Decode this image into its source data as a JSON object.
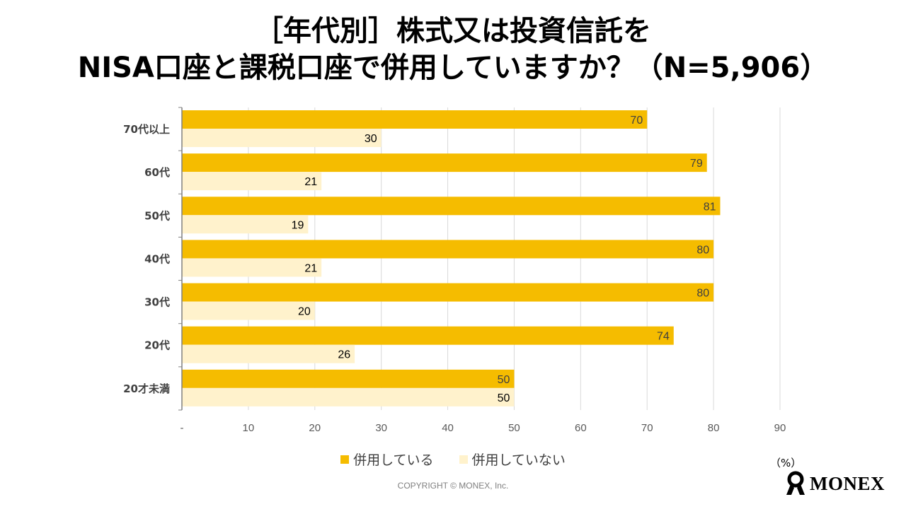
{
  "title": {
    "line1": "［年代別］株式又は投資信託を",
    "line2": "NISA口座と課税口座で併用していますか？（N=5,906）"
  },
  "colors": {
    "series1": "#F5BC00",
    "series2": "#FFF2CC",
    "grid": "#D9D9D9",
    "axis": "#808080",
    "tick_text": "#595959",
    "label_text": "#404040"
  },
  "chart_data": {
    "type": "bar",
    "orientation": "horizontal",
    "categories": [
      "70代以上",
      "60代",
      "50代",
      "40代",
      "30代",
      "20代",
      "20才未満"
    ],
    "series": [
      {
        "name": "併用している",
        "values": [
          70,
          79,
          81,
          80,
          80,
          74,
          50
        ],
        "labels": [
          "70",
          "79",
          "81",
          "80",
          "80",
          "74",
          "50"
        ]
      },
      {
        "name": "併用していない",
        "values": [
          30,
          21,
          19,
          21,
          20,
          26,
          50
        ],
        "labels": [
          "30",
          "21",
          "19",
          "21",
          "20",
          "26",
          "50"
        ]
      }
    ],
    "xlim": [
      0,
      90
    ],
    "xticks": [
      0,
      10,
      20,
      30,
      40,
      50,
      60,
      70,
      80,
      90
    ],
    "xtick_labels": [
      "-",
      "10",
      "20",
      "30",
      "40",
      "50",
      "60",
      "70",
      "80",
      "90"
    ],
    "unit": "（%）",
    "grid": true,
    "legend_position": "bottom"
  },
  "footer": {
    "copyright": "COPYRIGHT © MONEX, Inc.",
    "logo_text": "MONEX"
  }
}
